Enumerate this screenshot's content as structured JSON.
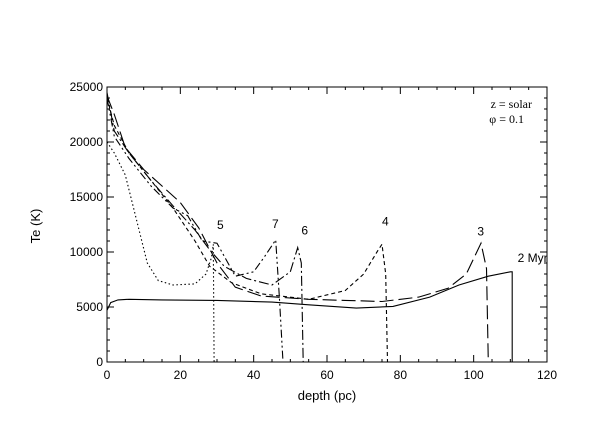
{
  "chart_data": {
    "type": "line",
    "xlabel": "depth  (pc)",
    "ylabel": "Te (K)",
    "xlim": [
      0,
      120
    ],
    "ylim": [
      0,
      25000
    ],
    "xticks": [
      0,
      20,
      40,
      60,
      80,
      100,
      120
    ],
    "yticks": [
      0,
      5000,
      10000,
      15000,
      20000,
      25000
    ],
    "grid": false,
    "annotations": [
      "z = solar",
      "φ = 0.1"
    ],
    "series": [
      {
        "name": "2 Myr",
        "dash": "solid",
        "label_at": [
          112,
          9100
        ],
        "points": [
          [
            0,
            4700
          ],
          [
            1,
            5400
          ],
          [
            3,
            5650
          ],
          [
            6,
            5700
          ],
          [
            15,
            5650
          ],
          [
            30,
            5600
          ],
          [
            45,
            5450
          ],
          [
            55,
            5200
          ],
          [
            68,
            4900
          ],
          [
            78,
            5050
          ],
          [
            88,
            5900
          ],
          [
            96,
            7000
          ],
          [
            104,
            7800
          ],
          [
            110,
            8200
          ],
          [
            110.5,
            8200
          ],
          [
            110.5,
            0
          ]
        ]
      },
      {
        "name": "3",
        "dash": "longdash",
        "label_at": [
          101,
          11500
        ],
        "points": [
          [
            0,
            24200
          ],
          [
            2,
            22500
          ],
          [
            5,
            19500
          ],
          [
            10,
            17500
          ],
          [
            15,
            16000
          ],
          [
            20,
            14500
          ],
          [
            25,
            12200
          ],
          [
            30,
            9000
          ],
          [
            35,
            6800
          ],
          [
            42,
            6000
          ],
          [
            55,
            5700
          ],
          [
            65,
            5600
          ],
          [
            75,
            5500
          ],
          [
            85,
            5900
          ],
          [
            93,
            6700
          ],
          [
            98,
            8000
          ],
          [
            102,
            10800
          ],
          [
            103.5,
            8500
          ],
          [
            104,
            0
          ]
        ]
      },
      {
        "name": "4",
        "dash": "shortdash",
        "label_at": [
          75,
          12400
        ],
        "points": [
          [
            0,
            24000
          ],
          [
            2,
            21500
          ],
          [
            6,
            19000
          ],
          [
            12,
            16500
          ],
          [
            18,
            14000
          ],
          [
            24,
            11000
          ],
          [
            28,
            8700
          ],
          [
            34,
            7200
          ],
          [
            42,
            6200
          ],
          [
            55,
            5700
          ],
          [
            65,
            6500
          ],
          [
            70,
            8000
          ],
          [
            74,
            10200
          ],
          [
            75,
            10700
          ],
          [
            76,
            8000
          ],
          [
            76.5,
            0
          ]
        ]
      },
      {
        "name": "6",
        "dash": "dashdot",
        "label_at": [
          53,
          11600
        ],
        "points": [
          [
            0,
            24500
          ],
          [
            2,
            21000
          ],
          [
            6,
            19000
          ],
          [
            12,
            16500
          ],
          [
            18,
            14200
          ],
          [
            24,
            12000
          ],
          [
            28,
            10200
          ],
          [
            32,
            8700
          ],
          [
            38,
            7600
          ],
          [
            45,
            7000
          ],
          [
            50,
            8200
          ],
          [
            52,
            10400
          ],
          [
            53,
            9000
          ],
          [
            53.5,
            0
          ]
        ]
      },
      {
        "name": "7",
        "dash": "dashdotdot",
        "label_at": [
          45,
          12200
        ],
        "points": [
          [
            0,
            24000
          ],
          [
            2,
            20500
          ],
          [
            6,
            18500
          ],
          [
            12,
            16000
          ],
          [
            18,
            14000
          ],
          [
            22,
            13300
          ],
          [
            26,
            11000
          ],
          [
            30,
            10800
          ],
          [
            35,
            7800
          ],
          [
            40,
            8200
          ],
          [
            43,
            9600
          ],
          [
            46,
            11100
          ],
          [
            47,
            6000
          ],
          [
            48,
            0
          ]
        ]
      },
      {
        "name": "5",
        "dash": "dotted",
        "label_at": [
          30,
          12100
        ],
        "points": [
          [
            0,
            20000
          ],
          [
            2,
            19000
          ],
          [
            5,
            17000
          ],
          [
            8,
            13000
          ],
          [
            11,
            9000
          ],
          [
            14,
            7400
          ],
          [
            18,
            7000
          ],
          [
            24,
            7100
          ],
          [
            27,
            8000
          ],
          [
            28.5,
            9500
          ],
          [
            29,
            10700
          ],
          [
            29.2,
            0
          ]
        ]
      }
    ]
  }
}
